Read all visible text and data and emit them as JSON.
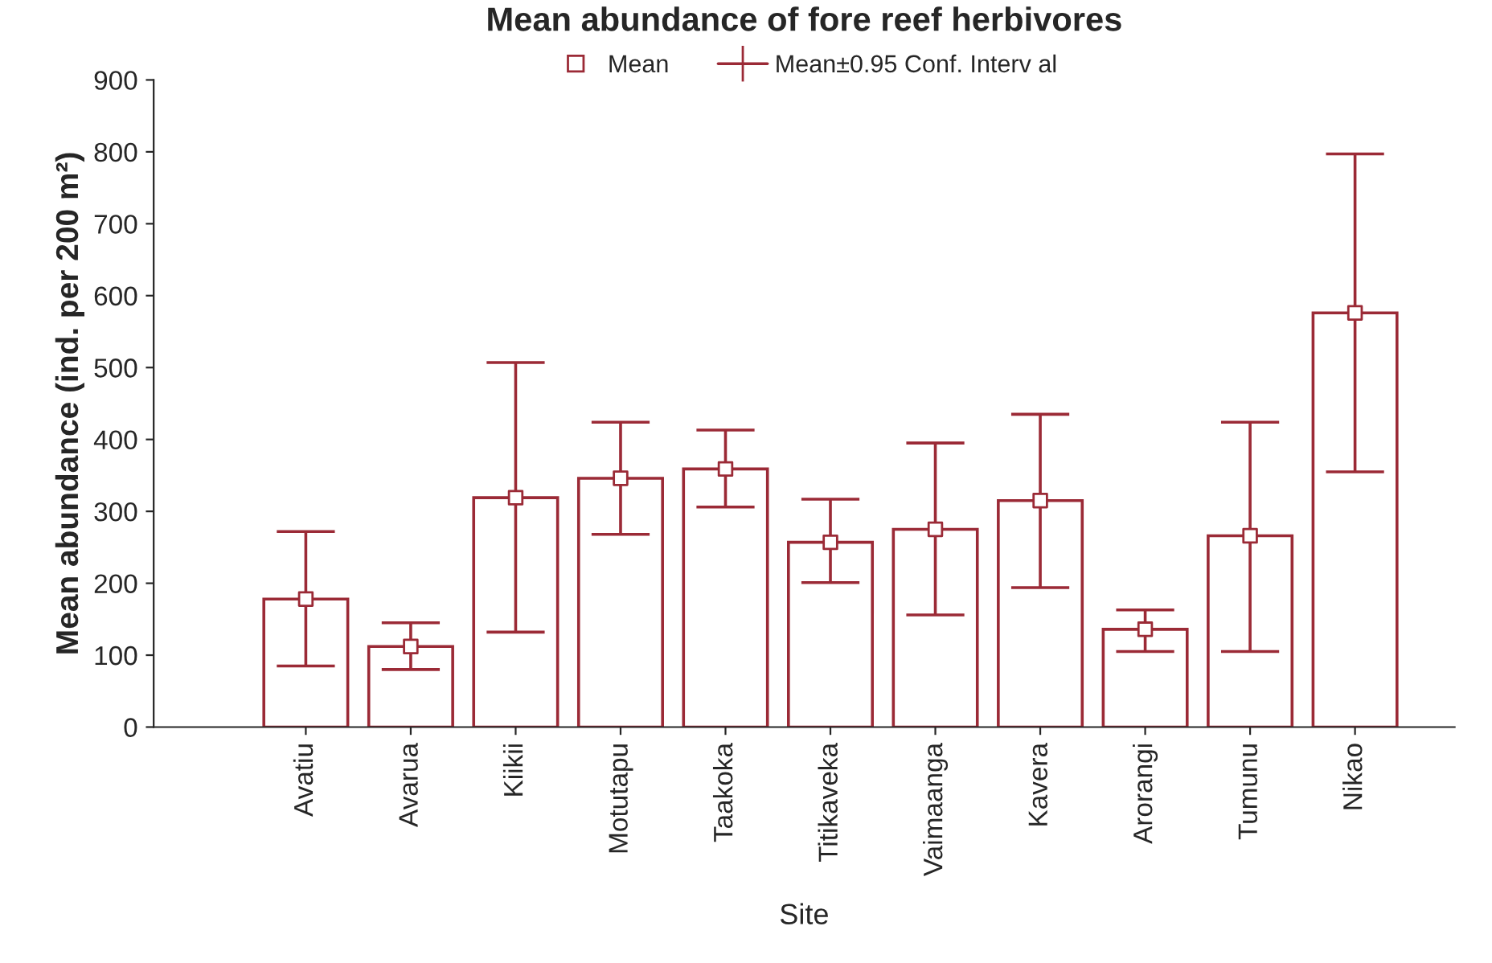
{
  "chart_data": {
    "type": "bar",
    "title": "Mean abundance of fore reef herbivores",
    "xlabel": "Site",
    "ylabel": "Mean abundance (ind. per 200 m²)",
    "categories": [
      "Avatiu",
      "Avarua",
      "Kiikii",
      "Motutapu",
      "Taakoka",
      "Titikaveka",
      "Vaimaanga",
      "Kavera",
      "Arorangi",
      "Tumunu",
      "Nikao"
    ],
    "series": [
      {
        "type": "scatter",
        "name": "Mean",
        "color": "#9b2a36",
        "marker": "square",
        "values": [
          178,
          112,
          319,
          346,
          359,
          257,
          275,
          315,
          136,
          266,
          576
        ]
      },
      {
        "name": "Mean±0.95 Conf. Interv al",
        "color": "#9b2a36",
        "values": [
          178,
          112,
          319,
          346,
          359,
          257,
          275,
          315,
          136,
          266,
          576
        ],
        "errors": [
          [
            85,
            272
          ],
          [
            80,
            145
          ],
          [
            132,
            507
          ],
          [
            268,
            424
          ],
          [
            306,
            413
          ],
          [
            201,
            317
          ],
          [
            156,
            395
          ],
          [
            194,
            435
          ],
          [
            105,
            163
          ],
          [
            105,
            424
          ],
          [
            355,
            797
          ]
        ]
      }
    ],
    "ylim": [
      0,
      900
    ],
    "yticks": [
      0,
      100,
      200,
      300,
      400,
      500,
      600,
      700,
      800,
      900
    ],
    "grid": false,
    "legend": "top"
  }
}
